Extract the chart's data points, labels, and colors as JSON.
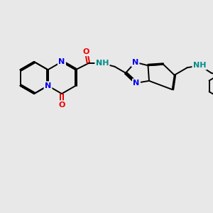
{
  "bg": "#e8e8e8",
  "bond_color": "#000000",
  "bw": 1.4,
  "atom_colors": {
    "N": "#0000ee",
    "O": "#ee0000",
    "NH": "#008b8b"
  },
  "fs": 8.0
}
